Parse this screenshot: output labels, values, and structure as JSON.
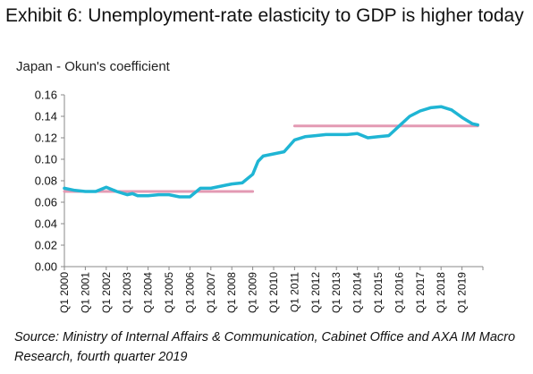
{
  "title": "Exhibit 6: Unemployment-rate elasticity to GDP is higher today",
  "subtitle": "Japan - Okun's coefficient",
  "source": "Source: Ministry of Internal Affairs & Communication, Cabinet Office and AXA IM Macro Research, fourth quarter 2019",
  "colors": {
    "series": "#1fb5d4",
    "average": "#e39ab3",
    "axis": "#888888"
  },
  "chart_data": {
    "type": "line",
    "title": "Exhibit 6: Unemployment-rate elasticity to GDP is higher today",
    "ylabel": "Japan - Okun's coefficient",
    "ylim": [
      0,
      0.16
    ],
    "yticks": [
      "0.00",
      "0.02",
      "0.04",
      "0.06",
      "0.08",
      "0.10",
      "0.12",
      "0.14",
      "0.16"
    ],
    "xticks": [
      "Q1 2000",
      "Q1 2001",
      "Q1 2002",
      "Q1 2003",
      "Q1 2004",
      "Q1 2005",
      "Q1 2006",
      "Q1 2007",
      "Q1 2008",
      "Q1 2009",
      "Q1 2010",
      "Q1 2011",
      "Q1 2012",
      "Q1 2013",
      "Q1 2014",
      "Q1 2015",
      "Q1 2016",
      "Q1 2017",
      "Q1 2018",
      "Q1 2019"
    ],
    "grid": false,
    "series": [
      {
        "x": [
          2000.0,
          2000.5,
          2001.0,
          2001.5,
          2002.0,
          2002.5,
          2003.0,
          2003.25,
          2003.5,
          2004.0,
          2004.5,
          2005.0,
          2005.5,
          2006.0,
          2006.5,
          2007.0,
          2007.5,
          2008.0,
          2008.5,
          2009.0,
          2009.25,
          2009.5,
          2010.0,
          2010.5,
          2011.0,
          2011.5,
          2012.0,
          2012.5,
          2013.0,
          2013.5,
          2014.0,
          2014.5,
          2015.0,
          2015.5,
          2016.0,
          2016.5,
          2017.0,
          2017.5,
          2018.0,
          2018.5,
          2019.0,
          2019.5,
          2019.75
        ],
        "y": [
          0.073,
          0.071,
          0.07,
          0.07,
          0.074,
          0.07,
          0.067,
          0.068,
          0.066,
          0.066,
          0.067,
          0.067,
          0.065,
          0.065,
          0.073,
          0.073,
          0.075,
          0.077,
          0.078,
          0.086,
          0.098,
          0.103,
          0.105,
          0.107,
          0.118,
          0.121,
          0.122,
          0.123,
          0.123,
          0.123,
          0.124,
          0.12,
          0.121,
          0.122,
          0.131,
          0.14,
          0.145,
          0.148,
          0.149,
          0.146,
          0.139,
          0.133,
          0.132
        ]
      },
      {
        "x": [
          2000.0,
          2009.0
        ],
        "y": [
          0.07,
          0.07
        ]
      },
      {
        "x": [
          2011.0,
          2019.75
        ],
        "y": [
          0.131,
          0.131
        ]
      }
    ]
  }
}
